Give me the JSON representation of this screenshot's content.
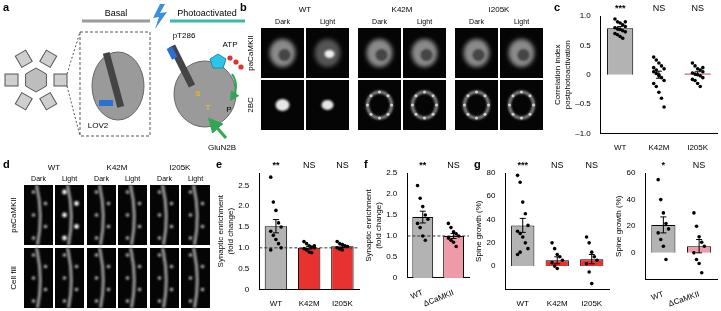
{
  "panels": {
    "a": {
      "label": "a",
      "basal": "Basal",
      "photoactivated": "Photoactivated",
      "lov2": "LOV2",
      "pt286": "pT286",
      "atp": "ATP",
      "p": "P",
      "glun2b": "GluN2B",
      "s": "S",
      "t": "T"
    },
    "b": {
      "label": "b",
      "columns": [
        "WT",
        "K42M",
        "I205K"
      ],
      "conditions": [
        "Dark",
        "Light"
      ],
      "rows": [
        "paCaMKII",
        "2BC"
      ]
    },
    "d": {
      "label": "d",
      "columns": [
        "WT",
        "K42M",
        "I205K"
      ],
      "conditions": [
        "Dark",
        "Light"
      ],
      "rows": [
        "paCaMKII",
        "Cell fill"
      ]
    }
  },
  "chart_data": [
    {
      "panel": "c",
      "type": "bar",
      "y_label": [
        "Correlation index",
        "postphotoactivation"
      ],
      "categories": [
        "WT",
        "K42M",
        "I205K"
      ],
      "values": [
        0.79,
        0.0,
        0.02
      ],
      "errors": [
        0.03,
        0.06,
        0.03
      ],
      "colors": [
        "#b3b3b3",
        "#e8322f",
        "#e8322f"
      ],
      "points": [
        [
          0.95,
          0.9,
          0.88,
          0.85,
          0.82,
          0.8,
          0.78,
          0.77,
          0.75,
          0.73,
          0.7,
          0.68,
          0.65,
          0.62,
          0.9
        ],
        [
          0.3,
          0.25,
          0.2,
          0.15,
          0.1,
          0.05,
          0.02,
          0.0,
          -0.05,
          -0.1,
          -0.15,
          -0.2,
          -0.3,
          -0.4,
          -0.55,
          0.12,
          0.08,
          -0.02
        ],
        [
          0.2,
          0.15,
          0.1,
          0.08,
          0.05,
          0.03,
          0.01,
          0.0,
          -0.02,
          -0.05,
          -0.08,
          -0.1,
          -0.15,
          -0.2,
          0.12
        ]
      ],
      "significance": [
        "***",
        "NS",
        "NS"
      ],
      "ylim": [
        -1,
        1
      ],
      "yticks": [
        {
          "value": -1,
          "label": "–1.0"
        },
        {
          "value": -0.5,
          "label": "–0.5"
        },
        0,
        0.5,
        {
          "value": 1,
          "label": "1.0"
        }
      ]
    },
    {
      "panel": "e",
      "type": "bar",
      "y_label": [
        "Synaptic enrichment",
        "(fold change)"
      ],
      "categories": [
        "WT",
        "K42M",
        "I205K"
      ],
      "values": [
        1.52,
        1.0,
        1.04
      ],
      "errors": [
        0.16,
        0.03,
        0.03
      ],
      "colors": [
        "#b3b3b3",
        "#e8322f",
        "#e8322f"
      ],
      "points": [
        [
          2.7,
          2.1,
          1.9,
          1.6,
          1.5,
          1.4,
          1.3,
          1.2,
          1.1,
          1.0,
          0.95
        ],
        [
          1.15,
          1.1,
          1.05,
          1.02,
          1.0,
          0.98,
          0.95,
          0.9,
          0.88,
          1.05
        ],
        [
          1.15,
          1.1,
          1.08,
          1.05,
          1.03,
          1.0,
          0.97,
          0.95
        ]
      ],
      "significance": [
        "**",
        "NS",
        "NS"
      ],
      "reference_line": 1,
      "ylim": [
        0,
        2.8
      ],
      "yticks": [
        0,
        0.5,
        {
          "value": 1,
          "label": "1.0"
        },
        1.5,
        {
          "value": 2,
          "label": "2.0"
        },
        2.5
      ]
    },
    {
      "panel": "f",
      "type": "bar",
      "y_label": [
        "Synaptic enrichment",
        "(fold change)"
      ],
      "categories": [
        "WT",
        "ΔCaMKII"
      ],
      "values": [
        1.45,
        1.0
      ],
      "errors": [
        0.14,
        0.06
      ],
      "colors": [
        "#b3b3b3",
        "#ee9aa8"
      ],
      "points": [
        [
          2.2,
          1.9,
          1.7,
          1.5,
          1.4,
          1.3,
          1.2,
          1.0,
          0.9
        ],
        [
          1.3,
          1.2,
          1.1,
          1.05,
          1.0,
          0.95,
          0.9,
          0.85,
          0.75
        ]
      ],
      "significance": [
        "**",
        "NS"
      ],
      "reference_line": 1,
      "ylim": [
        0,
        2.5
      ],
      "yticks": [
        0,
        0.5,
        {
          "value": 1,
          "label": "1.0"
        },
        1.5,
        {
          "value": 2,
          "label": "2.0"
        },
        2.5
      ]
    },
    {
      "panel": "g",
      "type": "bar",
      "y_label": [
        "Spine growth (%)"
      ],
      "categories": [
        "WT",
        "K42M",
        "I205K"
      ],
      "values": [
        35,
        5,
        6
      ],
      "errors": [
        6,
        3,
        4
      ],
      "colors": [
        "#b3b3b3",
        "#e8322f",
        "#e8322f"
      ],
      "points": [
        [
          78,
          72,
          55,
          45,
          35,
          30,
          28,
          25,
          20,
          15,
          10,
          12
        ],
        [
          20,
          15,
          10,
          8,
          5,
          3,
          0,
          -2
        ],
        [
          25,
          20,
          12,
          8,
          5,
          2,
          -5,
          -15
        ]
      ],
      "significance": [
        "***",
        "NS",
        "NS"
      ],
      "ylim": [
        -20,
        80
      ],
      "yticks": [
        0,
        20,
        40,
        60,
        80
      ]
    },
    {
      "type": "bar",
      "y_label": [
        "Spine growth (%)"
      ],
      "categories": [
        "WT",
        "ΔCaMKII"
      ],
      "values": [
        21,
        5
      ],
      "errors": [
        6,
        5
      ],
      "colors": [
        "#b3b3b3",
        "#ee9aa8"
      ],
      "points": [
        [
          55,
          40,
          30,
          22,
          18,
          15,
          10,
          5,
          -5
        ],
        [
          30,
          20,
          12,
          8,
          5,
          0,
          -5,
          -8,
          -15
        ]
      ],
      "significance": [
        "*",
        "NS"
      ],
      "ylim": [
        -20,
        60
      ],
      "yticks": [
        0,
        20,
        40,
        60
      ]
    }
  ]
}
